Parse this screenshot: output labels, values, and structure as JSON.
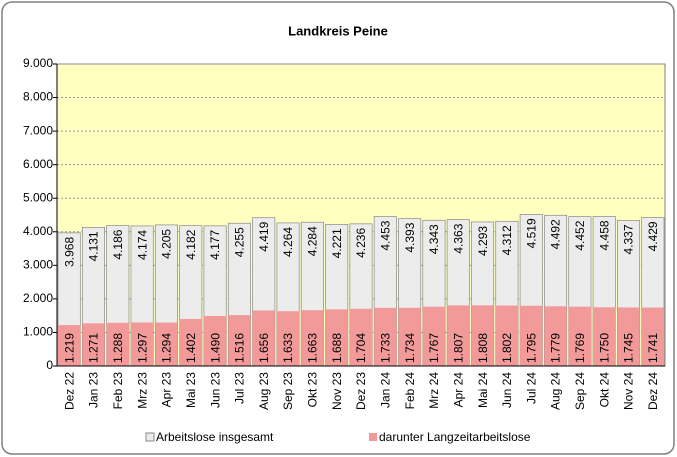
{
  "chart_data": {
    "type": "overlap-bar",
    "title": "Landkreis Peine",
    "categories": [
      "Dez 22",
      "Jan 23",
      "Feb 23",
      "Mrz 23",
      "Apr 23",
      "Mai 23",
      "Jun 23",
      "Jul 23",
      "Aug 23",
      "Sep 23",
      "Okt 23",
      "Nov 23",
      "Dez 23",
      "Jan 24",
      "Feb 24",
      "Mrz 24",
      "Apr 24",
      "Mai 24",
      "Jun 24",
      "Jul 24",
      "Aug 24",
      "Sep 24",
      "Okt 24",
      "Nov 24",
      "Dez 24"
    ],
    "series": [
      {
        "name": "Arbeitslose insgesamt",
        "color": "#ececec",
        "values": [
          3968,
          4131,
          4186,
          4174,
          4205,
          4182,
          4177,
          4255,
          4419,
          4264,
          4284,
          4221,
          4236,
          4453,
          4393,
          4343,
          4363,
          4293,
          4312,
          4519,
          4492,
          4452,
          4458,
          4337,
          4429
        ],
        "value_labels": [
          "3.968",
          "4.131",
          "4.186",
          "4.174",
          "4.205",
          "4.182",
          "4.177",
          "4.255",
          "4.419",
          "4.264",
          "4.284",
          "4.221",
          "4.236",
          "4.453",
          "4.393",
          "4.343",
          "4.363",
          "4.293",
          "4.312",
          "4.519",
          "4.492",
          "4.452",
          "4.458",
          "4.337",
          "4.429"
        ]
      },
      {
        "name": "darunter Langzeitarbeitslose",
        "color": "#f29a9a",
        "values": [
          1219,
          1271,
          1288,
          1297,
          1294,
          1402,
          1490,
          1516,
          1656,
          1633,
          1663,
          1688,
          1704,
          1733,
          1734,
          1767,
          1807,
          1808,
          1802,
          1795,
          1779,
          1769,
          1750,
          1745,
          1741
        ],
        "value_labels": [
          "1.219",
          "1.271",
          "1.288",
          "1.297",
          "1.294",
          "1.402",
          "1.490",
          "1.516",
          "1.656",
          "1.633",
          "1.663",
          "1.688",
          "1.704",
          "1.733",
          "1.734",
          "1.767",
          "1.807",
          "1.808",
          "1.802",
          "1.795",
          "1.779",
          "1.769",
          "1.750",
          "1.745",
          "1.741"
        ]
      }
    ],
    "ylim": [
      0,
      9000
    ],
    "yticks": [
      0,
      {
        "value": 1000,
        "label": "1.000"
      },
      {
        "value": 2000,
        "label": "2.000"
      },
      {
        "value": 3000,
        "label": "3.000"
      },
      {
        "value": 4000,
        "label": "4.000"
      },
      {
        "value": 5000,
        "label": "5.000"
      },
      {
        "value": 6000,
        "label": "6.000"
      },
      {
        "value": 7000,
        "label": "7.000"
      },
      {
        "value": 8000,
        "label": "8.000"
      },
      {
        "value": 9000,
        "label": "9.000"
      }
    ],
    "grid": true,
    "plot_background": "#ffffc0"
  }
}
